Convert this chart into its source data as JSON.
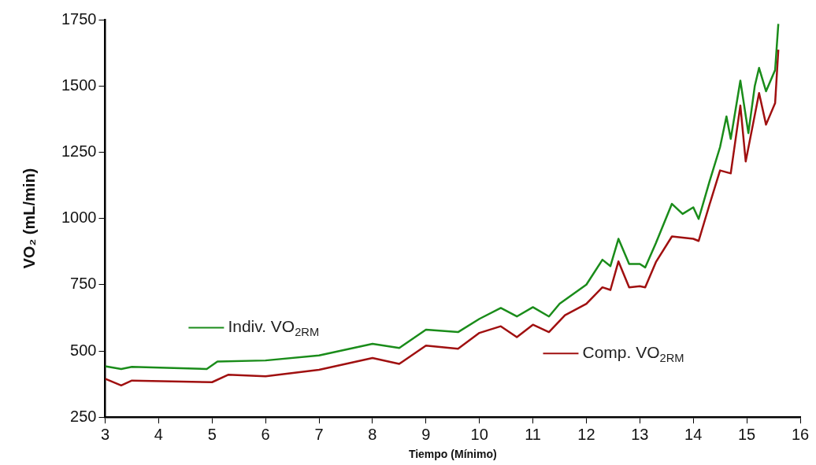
{
  "chart_data": {
    "type": "line",
    "xlabel": "Tiempo (Mínimo)",
    "ylabel": "VO₂ (mL/min)",
    "xlim": [
      3,
      16
    ],
    "xticks": [
      3,
      4,
      5,
      6,
      7,
      8,
      9,
      10,
      11,
      12,
      13,
      14,
      15,
      16
    ],
    "ylim": [
      250,
      1750
    ],
    "yticks": [
      250,
      500,
      750,
      1000,
      1250,
      1500,
      1750
    ],
    "grid": false,
    "legend": "bottom",
    "marker": "none",
    "line_style": "solid",
    "series": [
      {
        "name": "Indiv. VO$_{2RM}$",
        "color": "#1a8c1a",
        "x": [
          3,
          3.3,
          3.5,
          4.9,
          5.1,
          6,
          7,
          8,
          8.5,
          9,
          9.6,
          10,
          10.4,
          10.7,
          11,
          11.3,
          11.5,
          12,
          12.3,
          12.45,
          12.6,
          12.8,
          13,
          13.1,
          13.3,
          13.6,
          13.8,
          14,
          14.1,
          14.3,
          14.5,
          14.62,
          14.7,
          14.88,
          15.03,
          15.15,
          15.23,
          15.36,
          15.53,
          15.59
        ],
        "values": [
          442,
          432,
          440,
          432,
          460,
          464,
          483,
          527,
          511,
          580,
          571,
          621,
          662,
          630,
          665,
          630,
          678,
          750,
          844,
          820,
          923,
          828,
          828,
          815,
          907,
          1055,
          1017,
          1042,
          998,
          1137,
          1269,
          1385,
          1300,
          1520,
          1322,
          1500,
          1568,
          1480,
          1560,
          1734
        ]
      },
      {
        "name": "Comp. VO$_{2RM}$",
        "color": "#a01010",
        "x": [
          3,
          3.3,
          3.5,
          5,
          5.3,
          6,
          7,
          8,
          8.5,
          9,
          9.6,
          10,
          10.4,
          10.7,
          11,
          11.3,
          11.6,
          12,
          12.3,
          12.45,
          12.6,
          12.8,
          13,
          13.1,
          13.3,
          13.6,
          14,
          14.1,
          14.3,
          14.5,
          14.7,
          14.88,
          14.98,
          15.23,
          15.36,
          15.53,
          15.59
        ],
        "values": [
          395,
          370,
          388,
          382,
          410,
          404,
          429,
          473,
          451,
          520,
          508,
          568,
          593,
          552,
          599,
          571,
          635,
          678,
          740,
          730,
          838,
          740,
          744,
          740,
          835,
          932,
          923,
          915,
          1050,
          1181,
          1170,
          1426,
          1215,
          1473,
          1354,
          1435,
          1637
        ]
      }
    ]
  }
}
